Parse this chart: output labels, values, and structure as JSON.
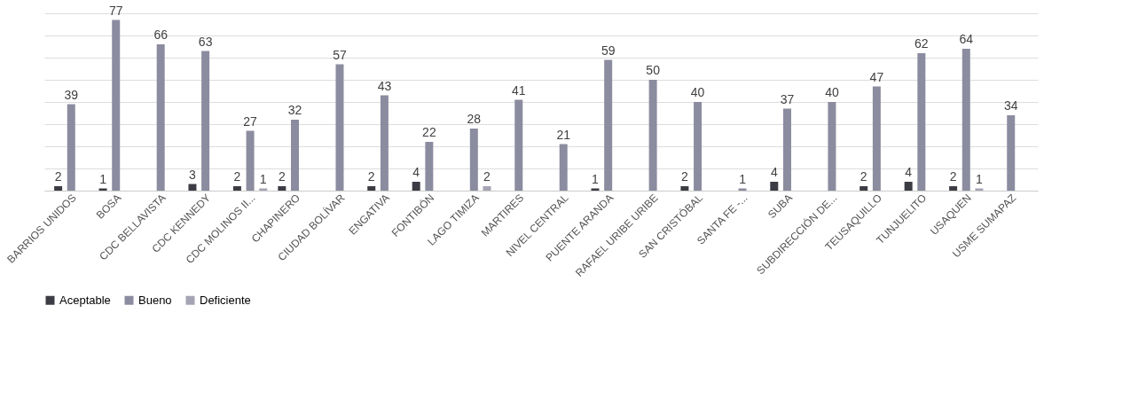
{
  "chart_data": {
    "type": "bar",
    "categories": [
      "BARRIOS UNIDOS",
      "BOSA",
      "CDC BELLAVISTA",
      "CDC KENNEDY",
      "CDC MOLINOS II...",
      "CHAPINERO",
      "CIUDAD BOLÍVAR",
      "ENGATIVA",
      "FONTIBÓN",
      "LAGO TIMIZA",
      "MARTIRES",
      "NIVEL CENTRAL",
      "PUENTE ARANDA",
      "RAFAEL URIBE URIBE",
      "SAN CRISTÓBAL",
      "SANTA FE -...",
      "SUBA",
      "SUBDIRECCIÓN DE...",
      "TEUSAQUILLO",
      "TUNJUELITO",
      "USAQUEN",
      "USME SUMAPAZ"
    ],
    "series": [
      {
        "name": "Aceptable",
        "color": "#3c3c44",
        "values": [
          2,
          1,
          null,
          3,
          2,
          2,
          null,
          2,
          4,
          null,
          null,
          null,
          1,
          null,
          2,
          null,
          4,
          null,
          2,
          4,
          2,
          null
        ]
      },
      {
        "name": "Bueno",
        "color": "#8c8ca0",
        "values": [
          39,
          77,
          66,
          63,
          27,
          32,
          57,
          43,
          22,
          28,
          41,
          21,
          59,
          50,
          40,
          1,
          37,
          40,
          47,
          62,
          64,
          34
        ]
      },
      {
        "name": "Deficiente",
        "color": "#a4a4b4",
        "values": [
          null,
          null,
          null,
          null,
          1,
          null,
          null,
          null,
          null,
          2,
          null,
          null,
          null,
          null,
          null,
          null,
          null,
          null,
          null,
          null,
          1,
          null
        ]
      }
    ],
    "grid": "y",
    "legend": "bottom",
    "data_labels": true,
    "tick_labels": "x"
  }
}
